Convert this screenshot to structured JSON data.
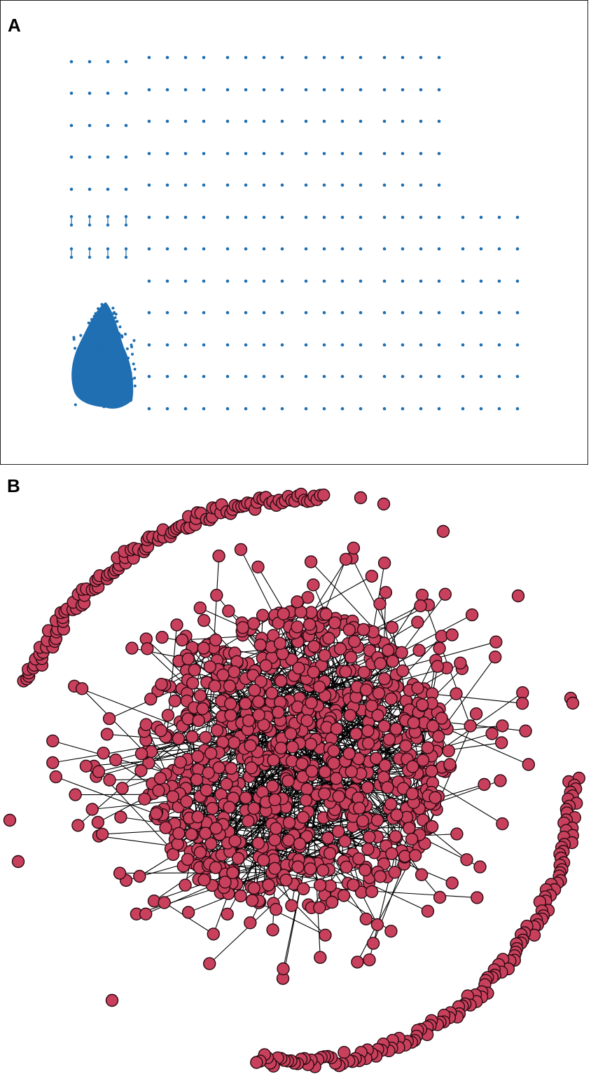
{
  "panels": [
    {
      "label": "A",
      "color": "#1f6fb2",
      "layout": "grid-of-components"
    },
    {
      "label": "B",
      "color": "#c8405c",
      "edge_color": "#000000",
      "layout": "force-directed-with-peripheral-ring"
    }
  ]
}
